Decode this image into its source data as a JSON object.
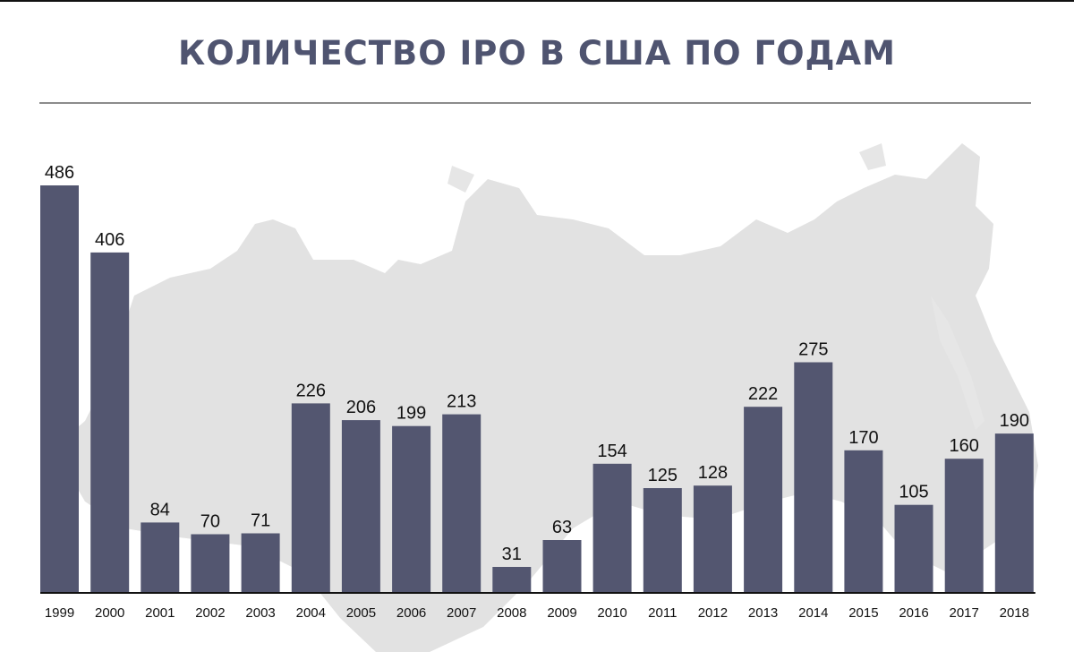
{
  "title": "КОЛИЧЕСТВО IPO В США ПО ГОДАМ",
  "colors": {
    "bar": "#535670",
    "title": "#4f5470",
    "map": "#e2e2e2",
    "axis": "#111111"
  },
  "background": {
    "icon": "russia-map-silhouette"
  },
  "chart_data": {
    "type": "bar",
    "title": "КОЛИЧЕСТВО IPO В США ПО ГОДАМ",
    "xlabel": "",
    "ylabel": "",
    "ylim": [
      0,
      486
    ],
    "grid": false,
    "categories": [
      "1999",
      "2000",
      "2001",
      "2002",
      "2003",
      "2004",
      "2005",
      "2006",
      "2007",
      "2008",
      "2009",
      "2010",
      "2011",
      "2012",
      "2013",
      "2014",
      "2015",
      "2016",
      "2017",
      "2018"
    ],
    "values": [
      486,
      406,
      84,
      70,
      71,
      226,
      206,
      199,
      213,
      31,
      63,
      154,
      125,
      128,
      222,
      275,
      170,
      105,
      160,
      190
    ]
  }
}
